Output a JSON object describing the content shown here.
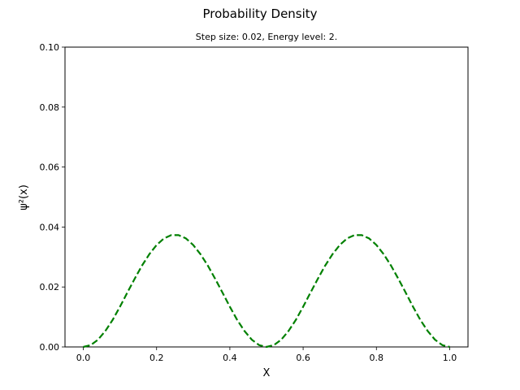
{
  "chart_data": {
    "type": "line",
    "title": "Probability Density",
    "subtitle": "Step size: 0.02, Energy level: 2.",
    "xlabel": "X",
    "ylabel": "ψ²(x)",
    "xlim": [
      -0.05,
      1.05
    ],
    "ylim": [
      0,
      0.1
    ],
    "xticks": [
      0.0,
      0.2,
      0.4,
      0.6,
      0.8,
      1.0
    ],
    "xtick_labels": [
      "0.0",
      "0.2",
      "0.4",
      "0.6",
      "0.8",
      "1.0"
    ],
    "yticks": [
      0.0,
      0.02,
      0.04,
      0.06,
      0.08,
      0.1
    ],
    "ytick_labels": [
      "0.00",
      "0.02",
      "0.04",
      "0.06",
      "0.08",
      "0.10"
    ],
    "grid": false,
    "series": [
      {
        "color": "#008000",
        "line_style": "dashed",
        "x": [
          0.0,
          0.02,
          0.04,
          0.06,
          0.08,
          0.1,
          0.12,
          0.14,
          0.16,
          0.18,
          0.2,
          0.22,
          0.24,
          0.26,
          0.28,
          0.3,
          0.32,
          0.34,
          0.36,
          0.38,
          0.4,
          0.42,
          0.44,
          0.46,
          0.48,
          0.5,
          0.52,
          0.54,
          0.56,
          0.58,
          0.6,
          0.62,
          0.64,
          0.66,
          0.68,
          0.7,
          0.72,
          0.74,
          0.76,
          0.78,
          0.8,
          0.82,
          0.84,
          0.86,
          0.88,
          0.9,
          0.92,
          0.94,
          0.96,
          0.98,
          1.0
        ],
        "y": [
          0.0,
          0.0006,
          0.0024,
          0.0053,
          0.009,
          0.0134,
          0.0181,
          0.0227,
          0.0271,
          0.0309,
          0.034,
          0.0362,
          0.0373,
          0.0373,
          0.0362,
          0.034,
          0.0309,
          0.0271,
          0.0227,
          0.0181,
          0.0134,
          0.009,
          0.0053,
          0.0024,
          0.0006,
          0.0,
          0.0006,
          0.0024,
          0.0053,
          0.009,
          0.0134,
          0.0181,
          0.0227,
          0.0271,
          0.0309,
          0.034,
          0.0362,
          0.0373,
          0.0373,
          0.0362,
          0.034,
          0.0309,
          0.0271,
          0.0227,
          0.0181,
          0.0134,
          0.009,
          0.0053,
          0.0024,
          0.0006,
          0.0
        ]
      }
    ]
  }
}
